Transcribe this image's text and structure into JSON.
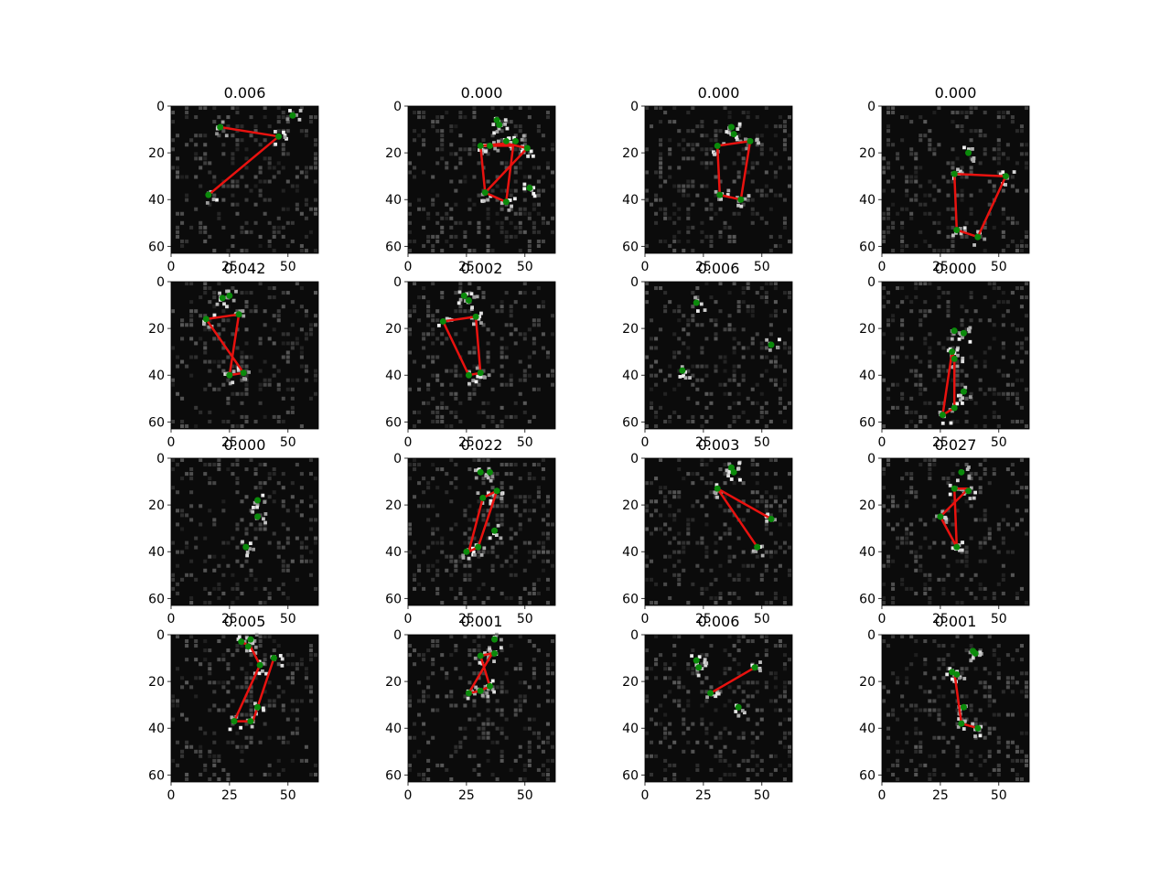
{
  "colors": {
    "background": "#ffffff",
    "image_dark": "#0b0b0b",
    "noise_light": "#bdbdbd",
    "skeleton_line": "#e8120f",
    "keypoint": "#0b8a0b",
    "axis": "#000000"
  },
  "chart_data": [
    {
      "type": "scatter",
      "title": "0.006",
      "xlim": [
        0,
        63
      ],
      "ylim": [
        63,
        0
      ],
      "xticks": [
        "0",
        "25",
        "50"
      ],
      "yticks": [
        "0",
        "20",
        "40",
        "60"
      ],
      "keypoints": [
        [
          52,
          4
        ],
        [
          21,
          9
        ],
        [
          46,
          13
        ],
        [
          16,
          38
        ]
      ],
      "skeleton": [
        [
          21,
          9
        ],
        [
          46,
          13
        ],
        [
          16,
          38
        ]
      ]
    },
    {
      "type": "scatter",
      "title": "0.000",
      "xlim": [
        0,
        63
      ],
      "ylim": [
        63,
        0
      ],
      "xticks": [
        "0",
        "25",
        "50"
      ],
      "yticks": [
        "0",
        "20",
        "40",
        "60"
      ],
      "keypoints": [
        [
          38,
          6
        ],
        [
          39,
          8
        ],
        [
          31,
          17
        ],
        [
          35,
          17
        ],
        [
          42,
          15
        ],
        [
          46,
          15
        ],
        [
          51,
          18
        ],
        [
          52,
          35
        ],
        [
          33,
          37
        ],
        [
          42,
          41
        ]
      ],
      "skeleton": [
        [
          31,
          17
        ],
        [
          42,
          16
        ],
        [
          51,
          18
        ],
        [
          33,
          37
        ],
        [
          42,
          41
        ],
        [
          45,
          17
        ],
        [
          35,
          17
        ],
        [
          31,
          17
        ],
        [
          33,
          37
        ]
      ]
    },
    {
      "type": "scatter",
      "title": "0.000",
      "xlim": [
        0,
        63
      ],
      "ylim": [
        63,
        0
      ],
      "xticks": [
        "0",
        "25",
        "50"
      ],
      "yticks": [
        "0",
        "20",
        "40",
        "60"
      ],
      "keypoints": [
        [
          37,
          9
        ],
        [
          38,
          12
        ],
        [
          31,
          17
        ],
        [
          45,
          15
        ],
        [
          32,
          38
        ],
        [
          41,
          40
        ]
      ],
      "skeleton": [
        [
          31,
          17
        ],
        [
          45,
          15
        ],
        [
          41,
          40
        ],
        [
          32,
          38
        ],
        [
          31,
          17
        ]
      ]
    },
    {
      "type": "scatter",
      "title": "0.000",
      "xlim": [
        0,
        63
      ],
      "ylim": [
        63,
        0
      ],
      "xticks": [
        "0",
        "25",
        "50"
      ],
      "yticks": [
        "0",
        "20",
        "40",
        "60"
      ],
      "keypoints": [
        [
          37,
          20
        ],
        [
          31,
          29
        ],
        [
          53,
          30
        ],
        [
          32,
          53
        ],
        [
          41,
          56
        ]
      ],
      "skeleton": [
        [
          31,
          29
        ],
        [
          53,
          30
        ],
        [
          41,
          56
        ],
        [
          32,
          53
        ],
        [
          31,
          29
        ]
      ]
    },
    {
      "type": "scatter",
      "title": "0.042",
      "xlim": [
        0,
        63
      ],
      "ylim": [
        63,
        0
      ],
      "xticks": [
        "0",
        "25",
        "50"
      ],
      "yticks": [
        "0",
        "20",
        "40",
        "60"
      ],
      "keypoints": [
        [
          22,
          7
        ],
        [
          25,
          6
        ],
        [
          15,
          16
        ],
        [
          29,
          14
        ],
        [
          25,
          40
        ],
        [
          31,
          39
        ]
      ],
      "skeleton": [
        [
          15,
          16
        ],
        [
          29,
          14
        ],
        [
          25,
          40
        ],
        [
          31,
          39
        ],
        [
          15,
          16
        ]
      ]
    },
    {
      "type": "scatter",
      "title": "0.002",
      "xlim": [
        0,
        63
      ],
      "ylim": [
        63,
        0
      ],
      "xticks": [
        "0",
        "25",
        "50"
      ],
      "yticks": [
        "0",
        "20",
        "40",
        "60"
      ],
      "keypoints": [
        [
          24,
          6
        ],
        [
          26,
          8
        ],
        [
          15,
          17
        ],
        [
          29,
          15
        ],
        [
          26,
          40
        ],
        [
          31,
          39
        ]
      ],
      "skeleton": [
        [
          15,
          17
        ],
        [
          29,
          15
        ],
        [
          31,
          39
        ],
        [
          26,
          40
        ],
        [
          15,
          17
        ]
      ]
    },
    {
      "type": "scatter",
      "title": "0.006",
      "xlim": [
        0,
        63
      ],
      "ylim": [
        63,
        0
      ],
      "xticks": [
        "0",
        "25",
        "50"
      ],
      "yticks": [
        "0",
        "20",
        "40",
        "60"
      ],
      "keypoints": [
        [
          22,
          9
        ],
        [
          54,
          27
        ],
        [
          16,
          38
        ]
      ],
      "skeleton": []
    },
    {
      "type": "scatter",
      "title": "0.000",
      "xlim": [
        0,
        63
      ],
      "ylim": [
        63,
        0
      ],
      "xticks": [
        "0",
        "25",
        "50"
      ],
      "yticks": [
        "0",
        "20",
        "40",
        "60"
      ],
      "keypoints": [
        [
          31,
          21
        ],
        [
          35,
          22
        ],
        [
          30,
          30
        ],
        [
          31,
          33
        ],
        [
          35,
          47
        ],
        [
          26,
          57
        ],
        [
          31,
          54
        ]
      ],
      "skeleton": [
        [
          30,
          30
        ],
        [
          26,
          57
        ],
        [
          31,
          54
        ],
        [
          31,
          33
        ],
        [
          30,
          30
        ]
      ]
    },
    {
      "type": "scatter",
      "title": "0.000",
      "xlim": [
        0,
        63
      ],
      "ylim": [
        63,
        0
      ],
      "xticks": [
        "0",
        "25",
        "50"
      ],
      "yticks": [
        "0",
        "20",
        "40",
        "60"
      ],
      "keypoints": [
        [
          37,
          18
        ],
        [
          37,
          25
        ],
        [
          32,
          38
        ]
      ],
      "skeleton": []
    },
    {
      "type": "scatter",
      "title": "0.022",
      "xlim": [
        0,
        63
      ],
      "ylim": [
        63,
        0
      ],
      "xticks": [
        "0",
        "25",
        "50"
      ],
      "yticks": [
        "0",
        "20",
        "40",
        "60"
      ],
      "keypoints": [
        [
          31,
          6
        ],
        [
          35,
          6
        ],
        [
          32,
          17
        ],
        [
          38,
          14
        ],
        [
          37,
          31
        ],
        [
          25,
          40
        ],
        [
          30,
          38
        ]
      ],
      "skeleton": [
        [
          32,
          17
        ],
        [
          26,
          40
        ],
        [
          30,
          38
        ],
        [
          38,
          14
        ],
        [
          32,
          17
        ]
      ]
    },
    {
      "type": "scatter",
      "title": "0.003",
      "xlim": [
        0,
        63
      ],
      "ylim": [
        63,
        0
      ],
      "xticks": [
        "0",
        "25",
        "50"
      ],
      "yticks": [
        "0",
        "20",
        "40",
        "60"
      ],
      "keypoints": [
        [
          37,
          4
        ],
        [
          38,
          6
        ],
        [
          31,
          13
        ],
        [
          54,
          26
        ],
        [
          48,
          38
        ]
      ],
      "skeleton": [
        [
          31,
          13
        ],
        [
          54,
          26
        ],
        [
          31,
          13
        ],
        [
          48,
          38
        ]
      ]
    },
    {
      "type": "scatter",
      "title": "0.027",
      "xlim": [
        0,
        63
      ],
      "ylim": [
        63,
        0
      ],
      "xticks": [
        "0",
        "25",
        "50"
      ],
      "yticks": [
        "0",
        "20",
        "40",
        "60"
      ],
      "keypoints": [
        [
          34,
          6
        ],
        [
          31,
          13
        ],
        [
          37,
          14
        ],
        [
          25,
          25
        ],
        [
          32,
          38
        ]
      ],
      "skeleton": [
        [
          31,
          13
        ],
        [
          32,
          38
        ],
        [
          25,
          25
        ],
        [
          37,
          13
        ],
        [
          31,
          13
        ]
      ]
    },
    {
      "type": "scatter",
      "title": "0.005",
      "xlim": [
        0,
        63
      ],
      "ylim": [
        63,
        0
      ],
      "xticks": [
        "0",
        "25",
        "50"
      ],
      "yticks": [
        "0",
        "20",
        "40",
        "60"
      ],
      "keypoints": [
        [
          30,
          3
        ],
        [
          34,
          2
        ],
        [
          33,
          5
        ],
        [
          38,
          13
        ],
        [
          44,
          10
        ],
        [
          37,
          31
        ],
        [
          27,
          37
        ],
        [
          34,
          37
        ]
      ],
      "skeleton": [
        [
          30,
          3
        ],
        [
          34,
          5
        ],
        [
          38,
          13
        ],
        [
          27,
          37
        ],
        [
          35,
          37
        ],
        [
          44,
          10
        ]
      ]
    },
    {
      "type": "scatter",
      "title": "0.001",
      "xlim": [
        0,
        63
      ],
      "ylim": [
        63,
        0
      ],
      "xticks": [
        "0",
        "25",
        "50"
      ],
      "yticks": [
        "0",
        "20",
        "40",
        "60"
      ],
      "keypoints": [
        [
          37,
          2
        ],
        [
          31,
          9
        ],
        [
          37,
          8
        ],
        [
          35,
          22
        ],
        [
          31,
          24
        ],
        [
          26,
          25
        ]
      ],
      "skeleton": [
        [
          31,
          9
        ],
        [
          36,
          8
        ],
        [
          26,
          25
        ],
        [
          31,
          24
        ],
        [
          35,
          22
        ],
        [
          31,
          9
        ]
      ]
    },
    {
      "type": "scatter",
      "title": "0.006",
      "xlim": [
        0,
        63
      ],
      "ylim": [
        63,
        0
      ],
      "xticks": [
        "0",
        "25",
        "50"
      ],
      "yticks": [
        "0",
        "20",
        "40",
        "60"
      ],
      "keypoints": [
        [
          22,
          11
        ],
        [
          23,
          14
        ],
        [
          47,
          14
        ],
        [
          28,
          25
        ],
        [
          40,
          31
        ]
      ],
      "skeleton": [
        [
          28,
          25
        ],
        [
          47,
          14
        ]
      ]
    },
    {
      "type": "scatter",
      "title": "0.001",
      "xlim": [
        0,
        63
      ],
      "ylim": [
        63,
        0
      ],
      "xticks": [
        "0",
        "25",
        "50"
      ],
      "yticks": [
        "0",
        "20",
        "40",
        "60"
      ],
      "keypoints": [
        [
          39,
          7
        ],
        [
          40,
          8
        ],
        [
          30,
          16
        ],
        [
          32,
          17
        ],
        [
          35,
          31
        ],
        [
          34,
          38
        ],
        [
          41,
          40
        ]
      ],
      "skeleton": [
        [
          31,
          16
        ],
        [
          34,
          38
        ],
        [
          41,
          40
        ]
      ]
    }
  ]
}
